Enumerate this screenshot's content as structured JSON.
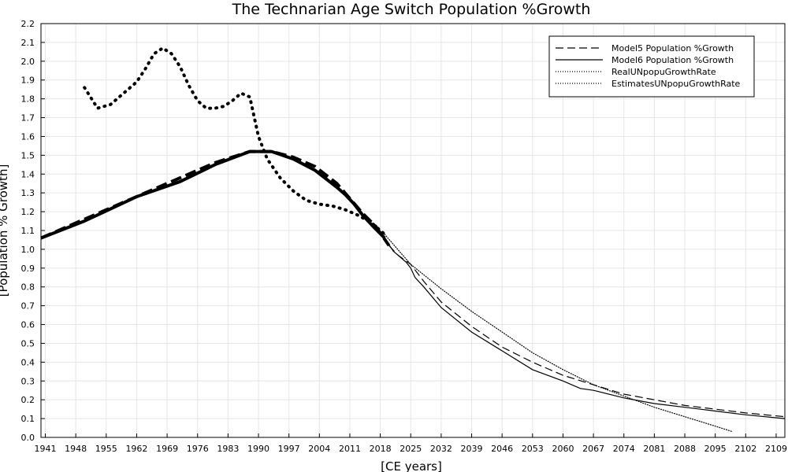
{
  "chart_data": {
    "type": "line",
    "title": "The Technarian Age Switch Population %Growth",
    "xlabel": "[CE years]",
    "ylabel": "[Population % Growth]",
    "xlim": [
      1940,
      2111
    ],
    "ylim": [
      0,
      2.2
    ],
    "x_ticks": [
      1941,
      1948,
      1955,
      1962,
      1969,
      1976,
      1983,
      1990,
      1997,
      2004,
      2011,
      2018,
      2025,
      2032,
      2039,
      2046,
      2053,
      2060,
      2067,
      2074,
      2081,
      2088,
      2095,
      2102,
      2109
    ],
    "y_ticks": [
      "0.0",
      "0.1",
      "0.2",
      "0.3",
      "0.4",
      "0.5",
      "0.6",
      "0.7",
      "0.8",
      "0.9",
      "1.0",
      "1.1",
      "1.2",
      "1.3",
      "1.4",
      "1.5",
      "1.6",
      "1.7",
      "1.8",
      "1.9",
      "2.0",
      "2.1",
      "2.2"
    ],
    "grid": true,
    "legend_position": "top-right",
    "series": [
      {
        "name": "Model5 Population %Growth",
        "style": "dashed",
        "color": "#000000",
        "x": [
          1940,
          1950,
          1960,
          1970,
          1980,
          1988,
          1993,
          1998,
          2003,
          2008,
          2011,
          2014,
          2017,
          2020,
          2022,
          2025,
          2028,
          2032,
          2039,
          2046,
          2053,
          2060,
          2067,
          2074,
          2081,
          2088,
          2095,
          2102,
          2111
        ],
        "values": [
          1.06,
          1.16,
          1.26,
          1.36,
          1.46,
          1.52,
          1.52,
          1.49,
          1.44,
          1.35,
          1.27,
          1.19,
          1.12,
          1.02,
          0.97,
          0.92,
          0.83,
          0.72,
          0.59,
          0.48,
          0.4,
          0.33,
          0.28,
          0.23,
          0.2,
          0.17,
          0.15,
          0.13,
          0.11
        ],
        "thick_until_x": 2018
      },
      {
        "name": "Model6 Population %Growth",
        "style": "solid",
        "color": "#000000",
        "x": [
          1940,
          1950,
          1962,
          1972,
          1980,
          1988,
          1993,
          1998,
          2003,
          2008,
          2010,
          2012,
          2014,
          2016,
          2019,
          2021,
          2022,
          2024,
          2025,
          2026,
          2028,
          2032,
          2039,
          2046,
          2053,
          2060,
          2064,
          2067,
          2074,
          2081,
          2088,
          2095,
          2102,
          2111
        ],
        "values": [
          1.06,
          1.15,
          1.28,
          1.36,
          1.45,
          1.52,
          1.52,
          1.48,
          1.42,
          1.33,
          1.29,
          1.24,
          1.18,
          1.13,
          1.06,
          0.99,
          0.97,
          0.93,
          0.9,
          0.85,
          0.8,
          0.69,
          0.56,
          0.46,
          0.36,
          0.3,
          0.26,
          0.25,
          0.21,
          0.18,
          0.16,
          0.14,
          0.12,
          0.1
        ],
        "thick_until_x": 2018
      },
      {
        "name": "RealUNpopuGrowthRate",
        "style": "dotted",
        "color": "#000000",
        "x": [
          1950,
          1953,
          1956,
          1959,
          1962,
          1964,
          1966,
          1968,
          1970,
          1972,
          1974,
          1976,
          1978,
          1980,
          1982,
          1984,
          1986,
          1988,
          1990,
          1992,
          1995,
          1998,
          2001,
          2004,
          2007,
          2010,
          2013,
          2016,
          2019
        ],
        "values": [
          1.86,
          1.75,
          1.77,
          1.83,
          1.89,
          1.96,
          2.04,
          2.07,
          2.04,
          1.97,
          1.87,
          1.79,
          1.75,
          1.75,
          1.76,
          1.79,
          1.83,
          1.81,
          1.6,
          1.48,
          1.38,
          1.31,
          1.26,
          1.24,
          1.23,
          1.21,
          1.18,
          1.14,
          1.08
        ],
        "thick": true
      },
      {
        "name": "EstimatesUNpopuGrowthRate",
        "style": "dotted",
        "color": "#000000",
        "x": [
          2019,
          2025,
          2032,
          2039,
          2046,
          2053,
          2060,
          2067,
          2074,
          2081,
          2088,
          2095,
          2099
        ],
        "values": [
          1.08,
          0.92,
          0.79,
          0.67,
          0.56,
          0.45,
          0.36,
          0.28,
          0.22,
          0.16,
          0.11,
          0.06,
          0.03
        ],
        "thick": false
      }
    ]
  }
}
